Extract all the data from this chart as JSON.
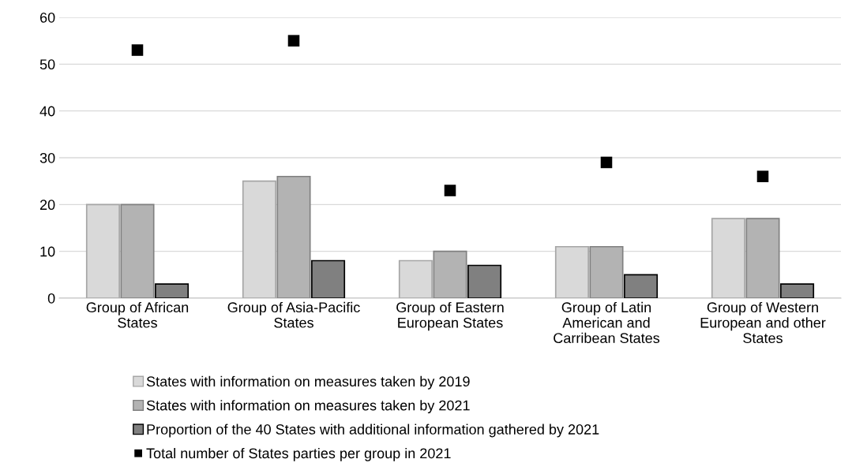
{
  "chart_data": {
    "type": "bar",
    "categories": [
      "Group of African States",
      "Group of Asia-Pacific States",
      "Group of Eastern European States",
      "Group of Latin American and Carribean States",
      "Group of Western European and other States"
    ],
    "series": [
      {
        "name": "States with information on measures taken by 2019",
        "color": "#d9d9d9",
        "values": [
          20,
          25,
          8,
          11,
          17
        ]
      },
      {
        "name": "States with information on measures taken by 2021",
        "color": "#b3b3b3",
        "values": [
          20,
          26,
          10,
          11,
          17
        ]
      },
      {
        "name": "Proportion of the 40 States with additional information gathered by 2021",
        "color": "#808080",
        "values": [
          3,
          8,
          7,
          5,
          3
        ]
      },
      {
        "name": "Total number of States parties per group in 2021",
        "type": "scatter",
        "marker": "square",
        "color": "#000000",
        "values": [
          53,
          55,
          23,
          29,
          26
        ]
      }
    ],
    "ylim": [
      0,
      60
    ],
    "yticks": [
      0,
      10,
      20,
      30,
      40,
      50,
      60
    ],
    "grid": "y",
    "legend": "bottom"
  }
}
